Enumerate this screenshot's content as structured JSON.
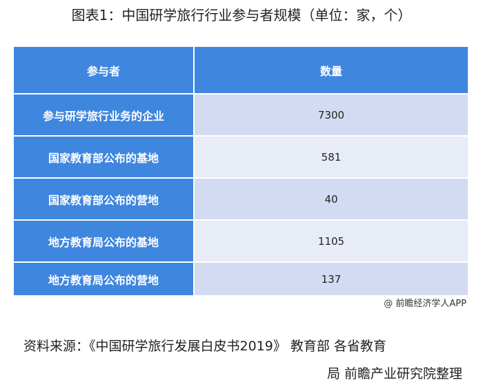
{
  "title": "图表1：中国研学旅行行业参与者规模（单位：家，个）",
  "chart_data": {
    "type": "table",
    "columns": [
      "参与者",
      "数量"
    ],
    "rows": [
      [
        "参与研学旅行业务的企业",
        "7300"
      ],
      [
        "国家教育部公布的基地",
        "581"
      ],
      [
        "国家教育部公布的营地",
        "40"
      ],
      [
        "地方教育局公布的基地",
        "1105"
      ],
      [
        "地方教育局公布的营地",
        "137"
      ]
    ]
  },
  "credit": "@ 前瞻经济学人APP",
  "source_line1": "资料来源：《中国研学旅行发展白皮书2019》 教育部 各省教育",
  "source_line2": "局 前瞻产业研究院整理",
  "colors": {
    "header": "#3f86df",
    "row_odd": "#d2dbf1",
    "row_even": "#e7ecf7"
  }
}
